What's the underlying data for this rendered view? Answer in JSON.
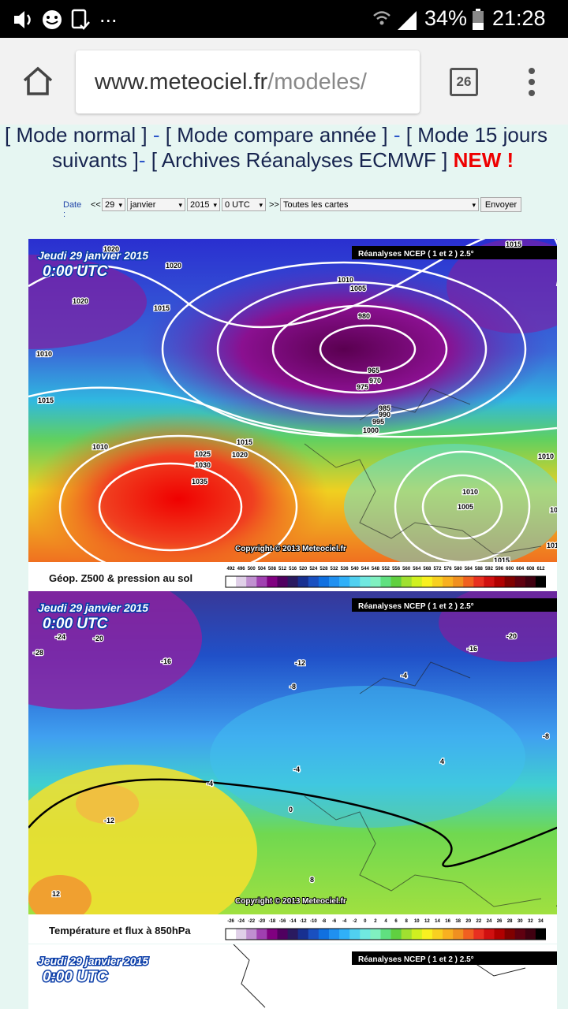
{
  "status_bar": {
    "dots": "...",
    "battery": "34%",
    "time": "21:28"
  },
  "browser": {
    "url_domain": "www.meteociel.fr",
    "url_path": "/modeles/",
    "tab_count": "26"
  },
  "nav": {
    "line1": [
      "[ Mode normal ]",
      "-",
      "[ Mode compare année ]",
      "-",
      "[ Mode 15 jours"
    ],
    "line2": [
      "suivants ]",
      "-",
      "[ Archives Réanalyses ECMWF ]"
    ],
    "new": "NEW !"
  },
  "form": {
    "date_label": "Date :",
    "prev": "<<",
    "day": "29",
    "month": "janvier",
    "year": "2015",
    "hour": "0 UTC",
    "next": ">>",
    "map_select": "Toutes les cartes",
    "button": "Envoyer"
  },
  "maps": [
    {
      "date": "Jeudi 29 janvier 2015",
      "time": "0:00 UTC",
      "source": "Réanalyses NCEP ( 1 et 2 ) 2.5°",
      "copyright": "Copyright © 2013 Meteociel.fr",
      "legend_title": "Géop. Z500 & pression au sol",
      "legend_ticks": [
        492,
        496,
        500,
        504,
        508,
        512,
        516,
        520,
        524,
        528,
        532,
        536,
        540,
        544,
        548,
        552,
        556,
        560,
        564,
        568,
        572,
        576,
        580,
        584,
        588,
        592,
        596,
        600,
        604,
        608,
        612
      ],
      "contour_labels": [
        1020,
        1020,
        1020,
        1015,
        1010,
        1015,
        1010,
        1010,
        1005,
        980,
        965,
        970,
        975,
        985,
        990,
        995,
        1000,
        1015,
        1020,
        1025,
        1030,
        1035,
        1010,
        1005,
        1010,
        1015,
        1015,
        1015,
        1015
      ]
    },
    {
      "date": "Jeudi 29 janvier 2015",
      "time": "0:00 UTC",
      "source": "Réanalyses NCEP ( 1 et 2 ) 2.5°",
      "copyright": "Copyright © 2013 Meteociel.fr",
      "legend_title": "Température et flux à 850hPa",
      "legend_ticks": [
        -26,
        -24,
        -22,
        -20,
        -18,
        -16,
        -14,
        -12,
        -10,
        -8,
        -6,
        -4,
        -2,
        0,
        2,
        4,
        6,
        8,
        10,
        12,
        14,
        16,
        18,
        20,
        22,
        24,
        26,
        28,
        30,
        32,
        34
      ],
      "contour_labels": [
        -24,
        -20,
        -28,
        -16,
        -12,
        -8,
        -4,
        -16,
        -20,
        -8,
        -4,
        -4,
        0,
        4,
        -12,
        12,
        8
      ]
    },
    {
      "date": "Jeudi 29 janvier 2015",
      "time": "0:00 UTC",
      "source": "Réanalyses NCEP ( 1 et 2 ) 2.5°"
    }
  ]
}
